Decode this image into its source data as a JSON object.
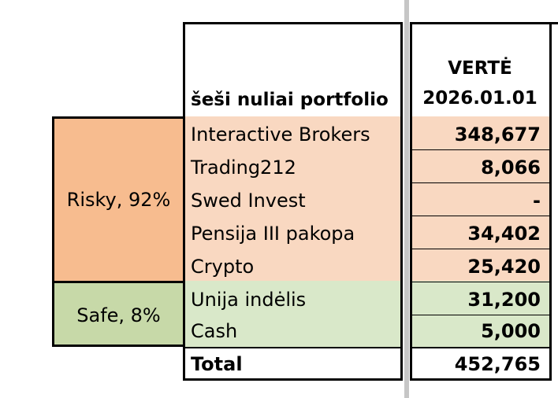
{
  "sheet": {
    "header_title": "šeši nuliai portfolio",
    "value_header_line1": "VERTĖ",
    "value_header_line2": "2026.01.01",
    "groups": {
      "risky": "Risky, 92%",
      "safe": "Safe, 8%"
    },
    "rows": [
      {
        "label": "Interactive Brokers",
        "value": "348,677",
        "group": "risky"
      },
      {
        "label": "Trading212",
        "value": "8,066",
        "group": "risky"
      },
      {
        "label": "Swed Invest",
        "value": "-",
        "group": "risky"
      },
      {
        "label": "Pensija III pakopa",
        "value": "34,402",
        "group": "risky"
      },
      {
        "label": "Crypto",
        "value": "25,420",
        "group": "risky"
      },
      {
        "label": "Unija indėlis",
        "value": "31,200",
        "group": "safe"
      },
      {
        "label": "Cash",
        "value": "5,000",
        "group": "safe"
      }
    ],
    "total_label": "Total",
    "total_value": "452,765"
  },
  "colors": {
    "risky_group": "#f7bc8f",
    "risky_rows": "#f9d8c1",
    "safe_group": "#c7d9a8",
    "safe_rows": "#d9e8c9",
    "divider": "#c6c6c6"
  }
}
